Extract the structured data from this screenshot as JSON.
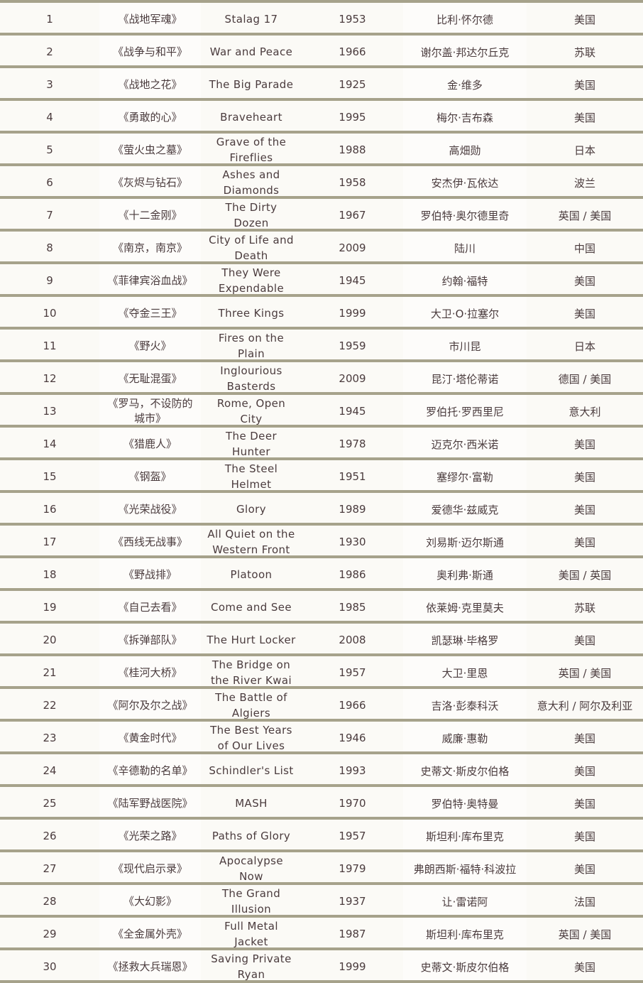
{
  "rows": [
    {
      "rank": "1",
      "cn_title": "《战地军魂》",
      "en_title": "Stalag 17",
      "year": "1953",
      "director": "比利·怀尔德",
      "country": "美国"
    },
    {
      "rank": "2",
      "cn_title": "《战争与和平》",
      "en_title": "War and Peace",
      "year": "1966",
      "director": "谢尔盖·邦达尔丘克",
      "country": "苏联"
    },
    {
      "rank": "3",
      "cn_title": "《战地之花》",
      "en_title": "The Big Parade",
      "year": "1925",
      "director": "金·维多",
      "country": "美国"
    },
    {
      "rank": "4",
      "cn_title": "《勇敢的心》",
      "en_title": "Braveheart",
      "year": "1995",
      "director": "梅尔·吉布森",
      "country": "美国"
    },
    {
      "rank": "5",
      "cn_title": "《萤火虫之墓》",
      "en_title": "Grave of the Fireflies",
      "year": "1988",
      "director": "高畑勋",
      "country": "日本"
    },
    {
      "rank": "6",
      "cn_title": "《灰烬与钻石》",
      "en_title": "Ashes and Diamonds",
      "year": "1958",
      "director": "安杰伊·瓦依达",
      "country": "波兰"
    },
    {
      "rank": "7",
      "cn_title": "《十二金刚》",
      "en_title": "The Dirty Dozen",
      "year": "1967",
      "director": "罗伯特·奥尔德里奇",
      "country": "英国 / 美国"
    },
    {
      "rank": "8",
      "cn_title": "《南京，南京》",
      "en_title": "City of Life and Death",
      "year": "2009",
      "director": "陆川",
      "country": "中国"
    },
    {
      "rank": "9",
      "cn_title": "《菲律宾浴血战》",
      "en_title": "They Were Expendable",
      "year": "1945",
      "director": "约翰·福特",
      "country": "美国"
    },
    {
      "rank": "10",
      "cn_title": "《夺金三王》",
      "en_title": "Three Kings",
      "year": "1999",
      "director": "大卫·O·拉塞尔",
      "country": "美国"
    },
    {
      "rank": "11",
      "cn_title": "《野火》",
      "en_title": "Fires on the Plain",
      "year": "1959",
      "director": "市川昆",
      "country": "日本"
    },
    {
      "rank": "12",
      "cn_title": "《无耻混蛋》",
      "en_title": "Inglourious Basterds",
      "year": "2009",
      "director": "昆汀·塔伦蒂诺",
      "country": "德国 / 美国"
    },
    {
      "rank": "13",
      "cn_title": "《罗马，不设防的城市》",
      "en_title": "Rome, Open City",
      "year": "1945",
      "director": "罗伯托·罗西里尼",
      "country": "意大利"
    },
    {
      "rank": "14",
      "cn_title": "《猎鹿人》",
      "en_title": "The Deer Hunter",
      "year": "1978",
      "director": "迈克尔·西米诺",
      "country": "美国"
    },
    {
      "rank": "15",
      "cn_title": "《钢盔》",
      "en_title": "The Steel Helmet",
      "year": "1951",
      "director": "塞缪尔·富勒",
      "country": "美国"
    },
    {
      "rank": "16",
      "cn_title": "《光荣战役》",
      "en_title": "Glory",
      "year": "1989",
      "director": "爱德华·兹威克",
      "country": "美国"
    },
    {
      "rank": "17",
      "cn_title": "《西线无战事》",
      "en_title": "All Quiet on the Western Front",
      "year": "1930",
      "director": "刘易斯·迈尔斯通",
      "country": "美国"
    },
    {
      "rank": "18",
      "cn_title": "《野战排》",
      "en_title": "Platoon",
      "year": "1986",
      "director": "奥利弗·斯通",
      "country": "美国 / 英国"
    },
    {
      "rank": "19",
      "cn_title": "《自己去看》",
      "en_title": "Come and See",
      "year": "1985",
      "director": "依莱姆·克里莫夫",
      "country": "苏联"
    },
    {
      "rank": "20",
      "cn_title": "《拆弹部队》",
      "en_title": "The Hurt Locker",
      "year": "2008",
      "director": "凯瑟琳·毕格罗",
      "country": "美国"
    },
    {
      "rank": "21",
      "cn_title": "《桂河大桥》",
      "en_title": "The Bridge on the River Kwai",
      "year": "1957",
      "director": "大卫·里恩",
      "country": "英国 / 美国"
    },
    {
      "rank": "22",
      "cn_title": "《阿尔及尔之战》",
      "en_title": "The Battle of Algiers",
      "year": "1966",
      "director": "吉洛·彭泰科沃",
      "country": "意大利 / 阿尔及利亚"
    },
    {
      "rank": "23",
      "cn_title": "《黄金时代》",
      "en_title": "The Best Years of Our Lives",
      "year": "1946",
      "director": "威廉·惠勒",
      "country": "美国"
    },
    {
      "rank": "24",
      "cn_title": "《辛德勒的名单》",
      "en_title": "Schindler's List",
      "year": "1993",
      "director": "史蒂文·斯皮尔伯格",
      "country": "美国"
    },
    {
      "rank": "25",
      "cn_title": "《陆军野战医院》",
      "en_title": "MASH",
      "year": "1970",
      "director": "罗伯特·奥特曼",
      "country": "美国"
    },
    {
      "rank": "26",
      "cn_title": "《光荣之路》",
      "en_title": "Paths of Glory",
      "year": "1957",
      "director": "斯坦利·库布里克",
      "country": "美国"
    },
    {
      "rank": "27",
      "cn_title": "《现代启示录》",
      "en_title": "Apocalypse Now",
      "year": "1979",
      "director": "弗朗西斯·福特·科波拉",
      "country": "美国"
    },
    {
      "rank": "28",
      "cn_title": "《大幻影》",
      "en_title": "The Grand Illusion",
      "year": "1937",
      "director": "让·雷诺阿",
      "country": "法国"
    },
    {
      "rank": "29",
      "cn_title": "《全金属外壳》",
      "en_title": "Full Metal Jacket",
      "year": "1987",
      "director": "斯坦利·库布里克",
      "country": "英国 / 美国"
    },
    {
      "rank": "30",
      "cn_title": "《拯救大兵瑞恩》",
      "en_title": "Saving Private Ryan",
      "year": "1999",
      "director": "史蒂文·斯皮尔伯格",
      "country": "美国"
    }
  ],
  "colors": {
    "separator": "#a6a28b",
    "text": "#4a3b3d",
    "background": "#fbfaf6"
  }
}
